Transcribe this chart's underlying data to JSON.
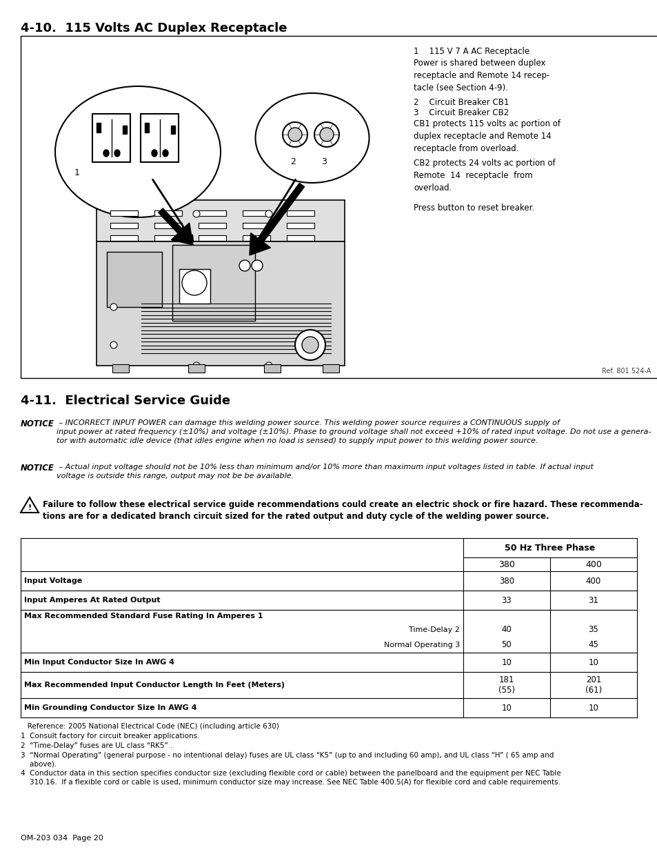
{
  "title1": "4-10.  115 Volts AC Duplex Receptacle",
  "title2": "4-11.  Electrical Service Guide",
  "section1_label1": "1    115 V 7 A AC Receptacle",
  "section1_text1": "Power is shared between duplex\nreceptacle and Remote 14 recep-\ntacle (see Section 4-9).",
  "section1_label2": "2    Circuit Breaker CB1",
  "section1_label3": "3    Circuit Breaker CB2",
  "section1_text2": "CB1 protects 115 volts ac portion of\nduplex receptacle and Remote 14\nreceptacle from overload.",
  "section1_text3": "CB2 protects 24 volts ac portion of\nRemote  14  receptacle  from\noverload.",
  "section1_text4": "Press button to reset breaker.",
  "ref_text": "Ref. 801 524-A",
  "notice1_bold": "NOTICE",
  "notice1_text": " – INCORRECT INPUT POWER can damage this welding power source. This welding power source requires a CONTINUOUS supply of\ninput power at rated frequency (±10%) and voltage (±10%). Phase to ground voltage shall not exceed +10% of rated input voltage. Do not use a genera-\ntor with automatic idle device (that idles engine when no load is sensed) to supply input power to this welding power source.",
  "notice2_bold": "NOTICE",
  "notice2_text": " – Actual input voltage should not be 10% less than minimum and/or 10% more than maximum input voltages listed in table. If actual input\nvoltage is outside this range, output may not be be available.",
  "warning_text": "Failure to follow these electrical service guide recommendations could create an electric shock or fire hazard. These recommenda-\ntions are for a dedicated branch circuit sized for the rated output and duty cycle of the welding power source.",
  "table_header": "50 Hz Three Phase",
  "footnote_ref": "   Reference: 2005 National Electrical Code (NEC) (including article 630)",
  "footnote1": "1  Consult factory for circuit breaker applications.",
  "footnote2": "2  “Time-Delay” fuses are UL class “RK5” .",
  "footnote3": "3  “Normal Operating” (general purpose - no intentional delay) fuses are UL class “K5” (up to and including 60 amp), and UL class “H” ( 65 amp and\n    above).",
  "footnote4": "4  Conductor data in this section specifies conductor size (excluding flexible cord or cable) between the panelboard and the equipment per NEC Table\n    310.16.  If a flexible cord or cable is used, minimum conductor size may increase. See NEC Table 400.5(A) for flexible cord and cable requirements.",
  "page_text": "OM-203 034  Page 20",
  "bg_color": "#ffffff",
  "text_color": "#000000"
}
